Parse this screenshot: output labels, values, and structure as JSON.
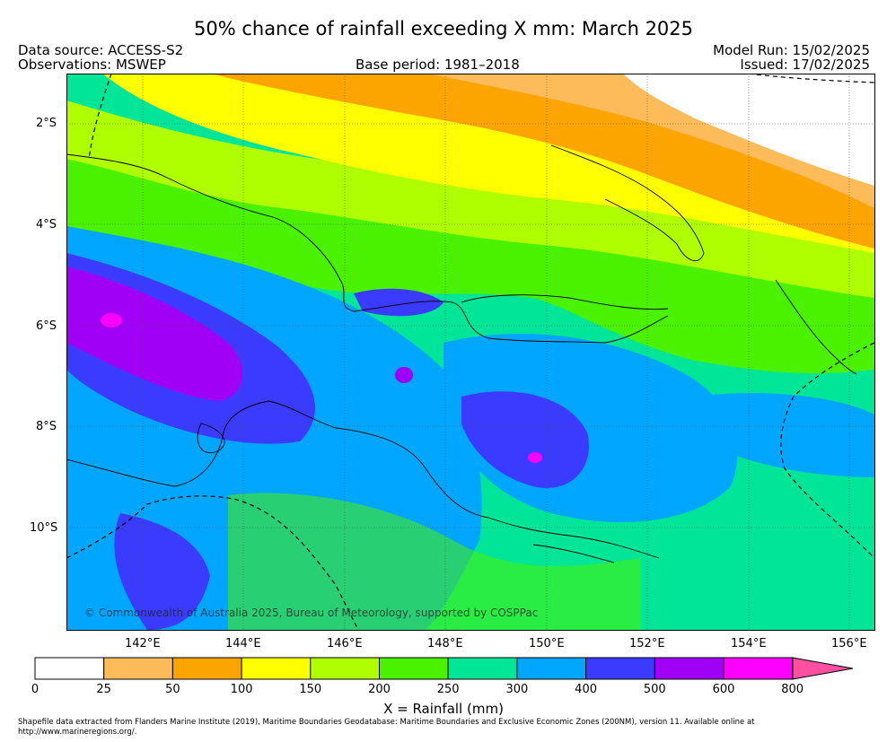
{
  "title": "50% chance of rainfall exceeding X mm: March 2025",
  "header": {
    "data_source": "Data source: ACCESS-S2",
    "observations": "Observations: MSWEP",
    "base_period": "Base period: 1981–2018",
    "model_run": "Model Run: 15/02/2025",
    "issued": "Issued: 17/02/2025"
  },
  "map": {
    "lat_ticks": [
      "2°S",
      "4°S",
      "6°S",
      "8°S",
      "10°S"
    ],
    "lon_ticks": [
      "142°E",
      "144°E",
      "146°E",
      "148°E",
      "150°E",
      "152°E",
      "154°E",
      "156°E"
    ],
    "copyright": "© Commonwealth of Australia 2025, Bureau of Meteorology, supported by COSPPac"
  },
  "colorbar": {
    "tick_labels": [
      "0",
      "25",
      "50",
      "100",
      "150",
      "200",
      "250",
      "300",
      "400",
      "500",
      "600",
      "800"
    ],
    "colors": [
      "#ffffff",
      "#fdbb5a",
      "#fca500",
      "#ffff00",
      "#b0ff00",
      "#4af200",
      "#00e598",
      "#00a6ff",
      "#3b3bff",
      "#a000f5",
      "#ff00ff",
      "#ff4fa0"
    ],
    "label": "X = Rainfall (mm)"
  },
  "footer": "Shapefile data extracted from Flanders Marine Institute (2019), Maritime Boundaries Geodatabase: Maritime Boundaries and Exclusive Economic Zones (200NM), version 11. Available online at http://www.marineregions.org/."
}
